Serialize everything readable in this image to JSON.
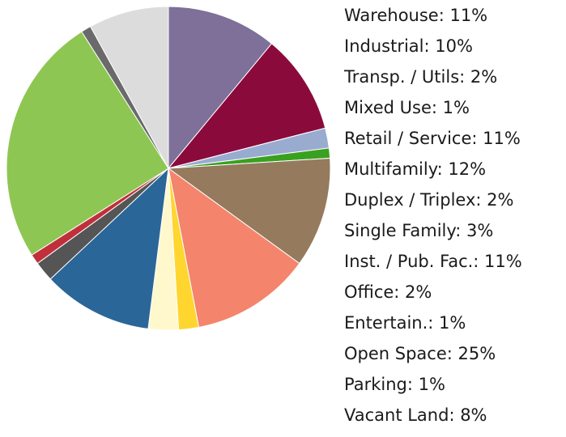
{
  "chart_data": {
    "type": "pie",
    "categories": [
      "Warehouse: 11%",
      "Industrial: 10%",
      "Transp. / Utils: 2%",
      "Mixed Use: 1%",
      "Retail / Service: 11%",
      "Multifamily: 12%",
      "Duplex / Triplex: 2%",
      "Single Family: 3%",
      "Inst. / Pub. Fac.: 11%",
      "Office: 2%",
      "Entertain.: 1%",
      "Open Space: 25%",
      "Parking: 1%",
      "Vacant Land: 8%"
    ],
    "values": [
      11,
      10,
      2,
      1,
      11,
      12,
      2,
      3,
      11,
      2,
      1,
      25,
      1,
      8
    ],
    "colors": [
      "#7e7098",
      "#8b0a3c",
      "#9aabd0",
      "#3aa020",
      "#957a5e",
      "#f4846c",
      "#ffd530",
      "#fff8cc",
      "#2a6698",
      "#555555",
      "#c0303a",
      "#8ec653",
      "#6a6a6a",
      "#dcdcdc"
    ]
  }
}
